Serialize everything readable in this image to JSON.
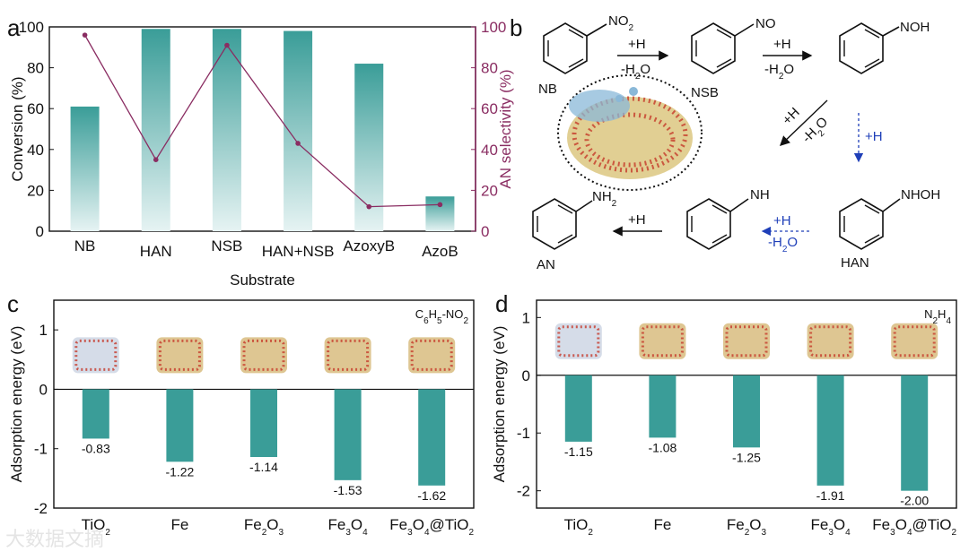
{
  "colors": {
    "bar": "#3a9d98",
    "bar_light": "#e6f3f3",
    "line": "#8a2d62",
    "text": "#111111",
    "blue": "#1f3fb8"
  },
  "chart_data": [
    {
      "panel": "a",
      "type": "bar",
      "xlabel": "Substrate",
      "ylabel": "Conversion (%)",
      "y2label": "AN selectivity (%)",
      "categories": [
        "NB",
        "HAN",
        "NSB",
        "HAN+NSB",
        "AzoxyB",
        "AzoB"
      ],
      "ylim": [
        0,
        100
      ],
      "yticks": [
        "0",
        "20",
        "40",
        "60",
        "80",
        "100"
      ],
      "y2ticks": [
        "0",
        "20",
        "40",
        "60",
        "80",
        "100"
      ],
      "series": [
        {
          "name": "Conversion",
          "kind": "bar",
          "values": [
            61,
            99,
            99,
            98,
            82,
            17
          ]
        },
        {
          "name": "AN selectivity",
          "kind": "line",
          "values": [
            96,
            35,
            91,
            43,
            12,
            13
          ]
        }
      ]
    },
    {
      "panel": "c",
      "type": "bar",
      "ylabel": "Adsorption energy (eV)",
      "annotation": "C6H5-NO2",
      "categories": [
        "TiO2",
        "Fe",
        "Fe2O3",
        "Fe3O4",
        "Fe3O4@TiO2"
      ],
      "values": [
        -0.83,
        -1.22,
        -1.14,
        -1.53,
        -1.62
      ],
      "value_labels": [
        "-0.83",
        "-1.22",
        "-1.14",
        "-1.53",
        "-1.62"
      ],
      "ylim": [
        -2,
        1.5
      ],
      "yticks": [
        "-2",
        "-1",
        "0",
        "1"
      ]
    },
    {
      "panel": "d",
      "type": "bar",
      "ylabel": "Adsorption energy (eV)",
      "annotation": "N2H4",
      "categories": [
        "TiO2",
        "Fe",
        "Fe2O3",
        "Fe3O4",
        "Fe3O4@TiO2"
      ],
      "values": [
        -1.15,
        -1.08,
        -1.25,
        -1.91,
        -2.0
      ],
      "value_labels": [
        "-1.15",
        "-1.08",
        "-1.25",
        "-1.91",
        "-2.00"
      ],
      "ylim": [
        -2.3,
        1.3
      ],
      "yticks": [
        "-2",
        "-1",
        "0",
        "1"
      ]
    }
  ],
  "scheme": {
    "panel": "b",
    "molecules": {
      "nb": "NB",
      "nsb": "NSB",
      "han": "HAN",
      "an": "AN"
    },
    "groups": {
      "no2": "NO2",
      "no": "NO",
      "noh": "NOH",
      "nhoh": "NHOH",
      "nh": "NH",
      "nh2": "NH2"
    },
    "arrows": {
      "h": "+H",
      "h2o": "-H2O"
    }
  },
  "panel_labels": {
    "a": "a",
    "b": "b",
    "c": "c",
    "d": "d"
  },
  "watermark": "大数据文摘"
}
